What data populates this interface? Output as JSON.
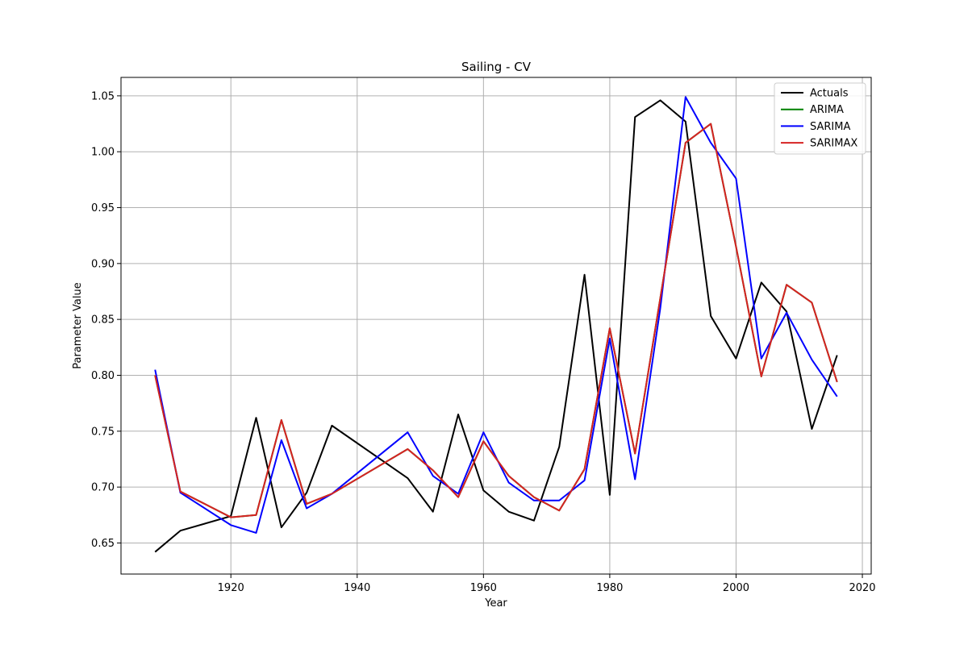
{
  "chart_data": {
    "type": "line",
    "title": "Sailing - CV",
    "xlabel": "Year",
    "ylabel": "Parameter Value",
    "xlim": [
      1902.6,
      2021.4
    ],
    "ylim": [
      0.6222,
      1.0665
    ],
    "xticks": [
      1920,
      1940,
      1960,
      1980,
      2000,
      2020
    ],
    "yticks": [
      0.65,
      0.7,
      0.75,
      0.8,
      0.85,
      0.9,
      0.95,
      1.0,
      1.05
    ],
    "ytick_labels": [
      "0.65",
      "0.70",
      "0.75",
      "0.80",
      "0.85",
      "0.90",
      "0.95",
      "1.00",
      "1.05"
    ],
    "grid": true,
    "legend": "top-right",
    "x": [
      1908,
      1912,
      1920,
      1924,
      1928,
      1932,
      1936,
      1948,
      1952,
      1956,
      1960,
      1964,
      1968,
      1972,
      1976,
      1980,
      1984,
      1988,
      1992,
      1996,
      2000,
      2004,
      2008,
      2012,
      2016
    ],
    "series": [
      {
        "name": "Actuals",
        "color": "#000000",
        "values": [
          0.642,
          0.661,
          0.674,
          0.762,
          0.664,
          0.695,
          0.755,
          0.708,
          0.678,
          0.765,
          0.697,
          0.678,
          0.67,
          0.736,
          0.89,
          0.693,
          1.031,
          1.046,
          1.027,
          0.853,
          0.815,
          0.883,
          0.857,
          0.752,
          0.818
        ]
      },
      {
        "name": "ARIMA",
        "color": "#008000",
        "values": [
          0.8,
          0.696,
          0.673,
          0.675,
          0.76,
          0.685,
          0.694,
          0.734,
          0.715,
          0.691,
          0.741,
          0.71,
          0.691,
          0.679,
          0.716,
          0.842,
          0.73,
          0.869,
          1.008,
          1.025,
          0.915,
          0.799,
          0.881,
          0.865,
          0.794
        ]
      },
      {
        "name": "SARIMA",
        "color": "#0000ff",
        "values": [
          0.805,
          0.695,
          0.666,
          0.659,
          0.742,
          0.681,
          0.694,
          0.749,
          0.71,
          0.694,
          0.749,
          0.704,
          0.688,
          0.688,
          0.706,
          0.833,
          0.707,
          0.86,
          1.049,
          1.008,
          0.976,
          0.815,
          0.856,
          0.814,
          0.781
        ]
      },
      {
        "name": "SARIMAX",
        "color": "#d62222",
        "values": [
          0.8,
          0.696,
          0.673,
          0.675,
          0.76,
          0.685,
          0.694,
          0.734,
          0.715,
          0.691,
          0.741,
          0.71,
          0.691,
          0.679,
          0.716,
          0.842,
          0.73,
          0.869,
          1.008,
          1.025,
          0.915,
          0.799,
          0.881,
          0.865,
          0.794
        ]
      }
    ]
  }
}
